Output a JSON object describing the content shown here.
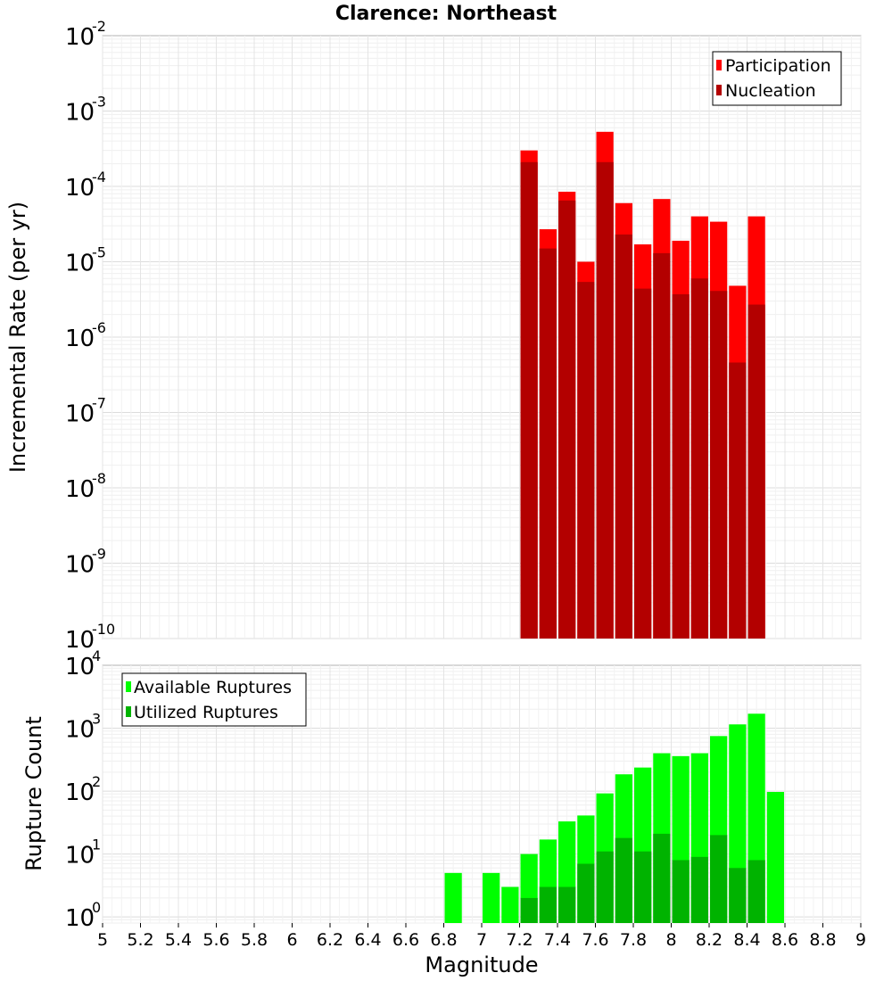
{
  "chart_data": [
    {
      "type": "bar",
      "title": "Clarence: Northeast",
      "ylabel": "Incremental Rate (per yr)",
      "xlabel": "",
      "x_range": [
        5,
        9
      ],
      "ylim": [
        1e-10,
        0.01
      ],
      "y_scale": "log",
      "y_ticks": [
        {
          "base": "10",
          "exp": "-2",
          "value": 0.01
        },
        {
          "base": "10",
          "exp": "-3",
          "value": 0.001
        },
        {
          "base": "10",
          "exp": "-4",
          "value": 0.0001
        },
        {
          "base": "10",
          "exp": "-5",
          "value": 1e-05
        },
        {
          "base": "10",
          "exp": "-6",
          "value": 1e-06
        },
        {
          "base": "10",
          "exp": "-7",
          "value": 1e-07
        },
        {
          "base": "10",
          "exp": "-8",
          "value": 1e-08
        },
        {
          "base": "10",
          "exp": "-9",
          "value": 1e-09
        },
        {
          "base": "10",
          "exp": "-10",
          "value": 1e-10
        }
      ],
      "grid": true,
      "legend_position": "top-right",
      "x": [
        7.25,
        7.35,
        7.45,
        7.55,
        7.65,
        7.75,
        7.85,
        7.95,
        8.05,
        8.15,
        8.25,
        8.35,
        8.45
      ],
      "series": [
        {
          "name": "Participation",
          "color": "#ff0000",
          "values": [
            0.0003,
            2.7e-05,
            8.5e-05,
            1e-05,
            0.00053,
            6e-05,
            1.7e-05,
            6.8e-05,
            1.9e-05,
            4e-05,
            3.4e-05,
            4.8e-06,
            4e-05
          ]
        },
        {
          "name": "Nucleation",
          "color": "#b30000",
          "values": [
            0.00021,
            1.5e-05,
            6.5e-05,
            5.4e-06,
            0.00021,
            2.3e-05,
            4.4e-06,
            1.3e-05,
            3.7e-06,
            6e-06,
            4.1e-06,
            4.6e-07,
            2.7e-06
          ]
        }
      ]
    },
    {
      "type": "bar",
      "title": "",
      "ylabel": "Rupture Count",
      "xlabel": "Magnitude",
      "x_range": [
        5,
        9
      ],
      "ylim": [
        0.8,
        10000.0
      ],
      "y_scale": "log",
      "y_ticks": [
        {
          "base": "10",
          "exp": "4",
          "value": 10000.0
        },
        {
          "base": "10",
          "exp": "3",
          "value": 1000.0
        },
        {
          "base": "10",
          "exp": "2",
          "value": 100.0
        },
        {
          "base": "10",
          "exp": "1",
          "value": 10
        },
        {
          "base": "10",
          "exp": "0",
          "value": 1
        }
      ],
      "x_ticks": [
        "5",
        "5.2",
        "5.4",
        "5.6",
        "5.8",
        "6",
        "6.2",
        "6.4",
        "6.6",
        "6.8",
        "7",
        "7.2",
        "7.4",
        "7.6",
        "7.8",
        "8",
        "8.2",
        "8.4",
        "8.6",
        "8.8",
        "9"
      ],
      "grid": true,
      "legend_position": "top-left",
      "x": [
        6.85,
        7.05,
        7.15,
        7.25,
        7.35,
        7.45,
        7.55,
        7.65,
        7.75,
        7.85,
        7.95,
        8.05,
        8.15,
        8.25,
        8.35,
        8.45,
        8.55
      ],
      "series": [
        {
          "name": "Available Ruptures",
          "color": "#00ff00",
          "values": [
            5,
            5,
            3,
            10,
            17,
            33,
            41,
            92,
            185,
            237,
            400,
            360,
            400,
            750,
            1150,
            1700,
            97
          ]
        },
        {
          "name": "Utilized Ruptures",
          "color": "#00b300",
          "values": [
            0,
            0,
            0,
            2,
            3,
            3,
            7,
            11,
            18,
            11,
            21,
            8,
            9,
            20,
            6,
            8,
            0
          ]
        }
      ]
    }
  ]
}
